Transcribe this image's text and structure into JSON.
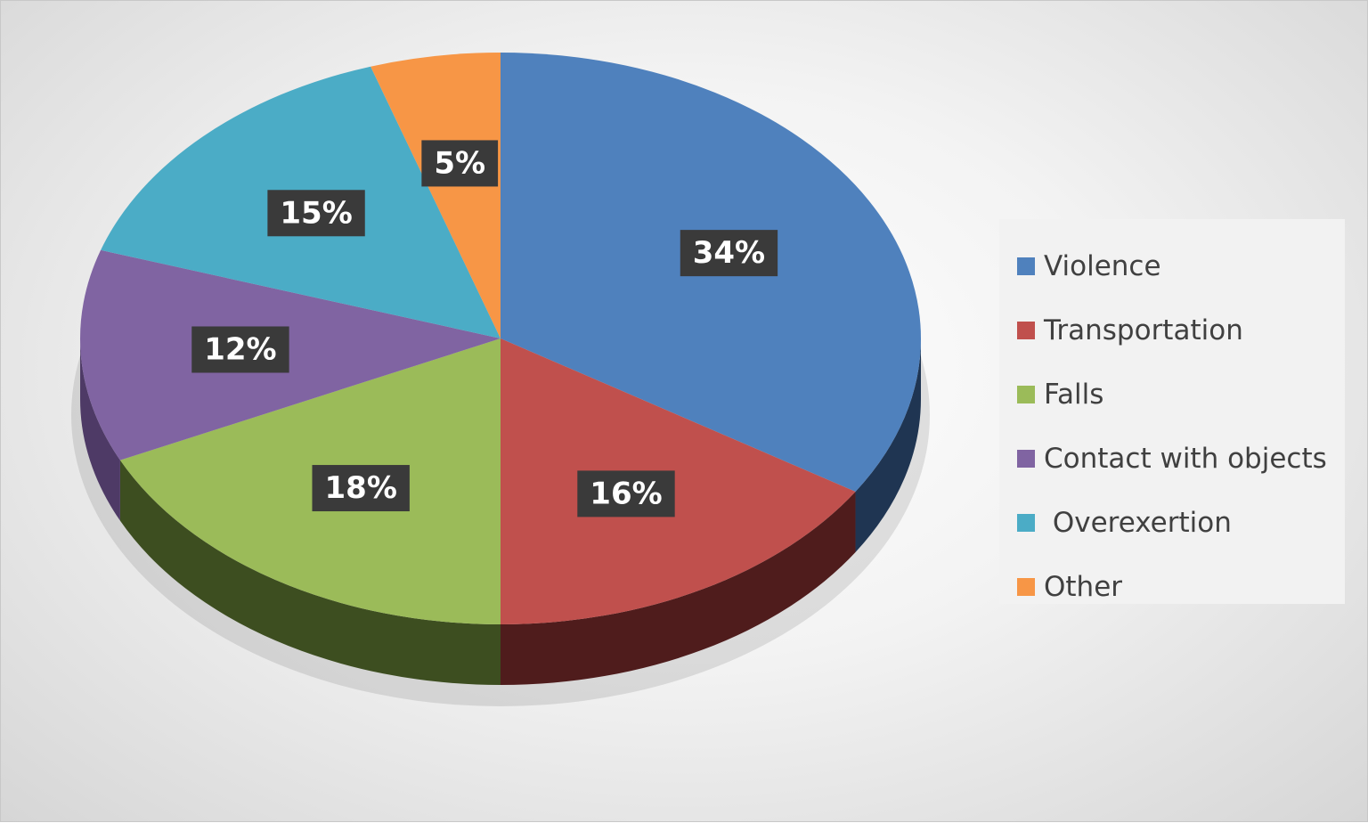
{
  "chart_data": {
    "type": "pie",
    "style": "3d",
    "legend_position": "right",
    "categories": [
      "Violence",
      "Transportation",
      "Falls",
      "Contact with objects",
      " Overexertion",
      "Other"
    ],
    "values": [
      34,
      16,
      18,
      12,
      15,
      5
    ],
    "data_labels": [
      "34%",
      "16%",
      "18%",
      "12%",
      "15%",
      "5%"
    ],
    "colors": [
      "#4f81bd",
      "#c0504d",
      "#9bbb59",
      "#8064a2",
      "#4bacc6",
      "#f79646"
    ],
    "side_colors": [
      "#1f3552",
      "#4f1c1c",
      "#3d4e20",
      "#4e3a66",
      "#1f5665",
      "#7a4620"
    ]
  }
}
